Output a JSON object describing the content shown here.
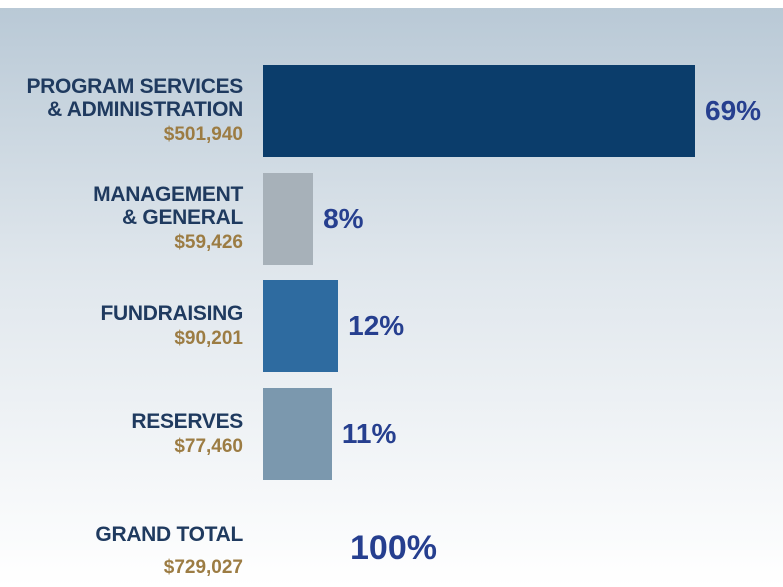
{
  "chart_data": {
    "type": "bar",
    "orientation": "horizontal",
    "categories": [
      "PROGRAM SERVICES\n& ADMINISTRATION",
      "MANAGEMENT\n& GENERAL",
      "FUNDRAISING",
      "RESERVES"
    ],
    "values": [
      69,
      8,
      12,
      11
    ],
    "value_labels": [
      "69%",
      "8%",
      "12%",
      "11%"
    ],
    "amounts": [
      501940,
      59426,
      90201,
      77460
    ],
    "amount_labels": [
      "$501,940",
      "$59,426",
      "$90,201",
      "$77,460"
    ],
    "colors": [
      "#0b3d6b",
      "#a7b1b9",
      "#2e6ba0",
      "#7b98ae"
    ],
    "total": {
      "label": "GRAND TOTAL",
      "value": 100,
      "value_label": "100%",
      "amount": 729027,
      "amount_label": "$729,027"
    }
  }
}
